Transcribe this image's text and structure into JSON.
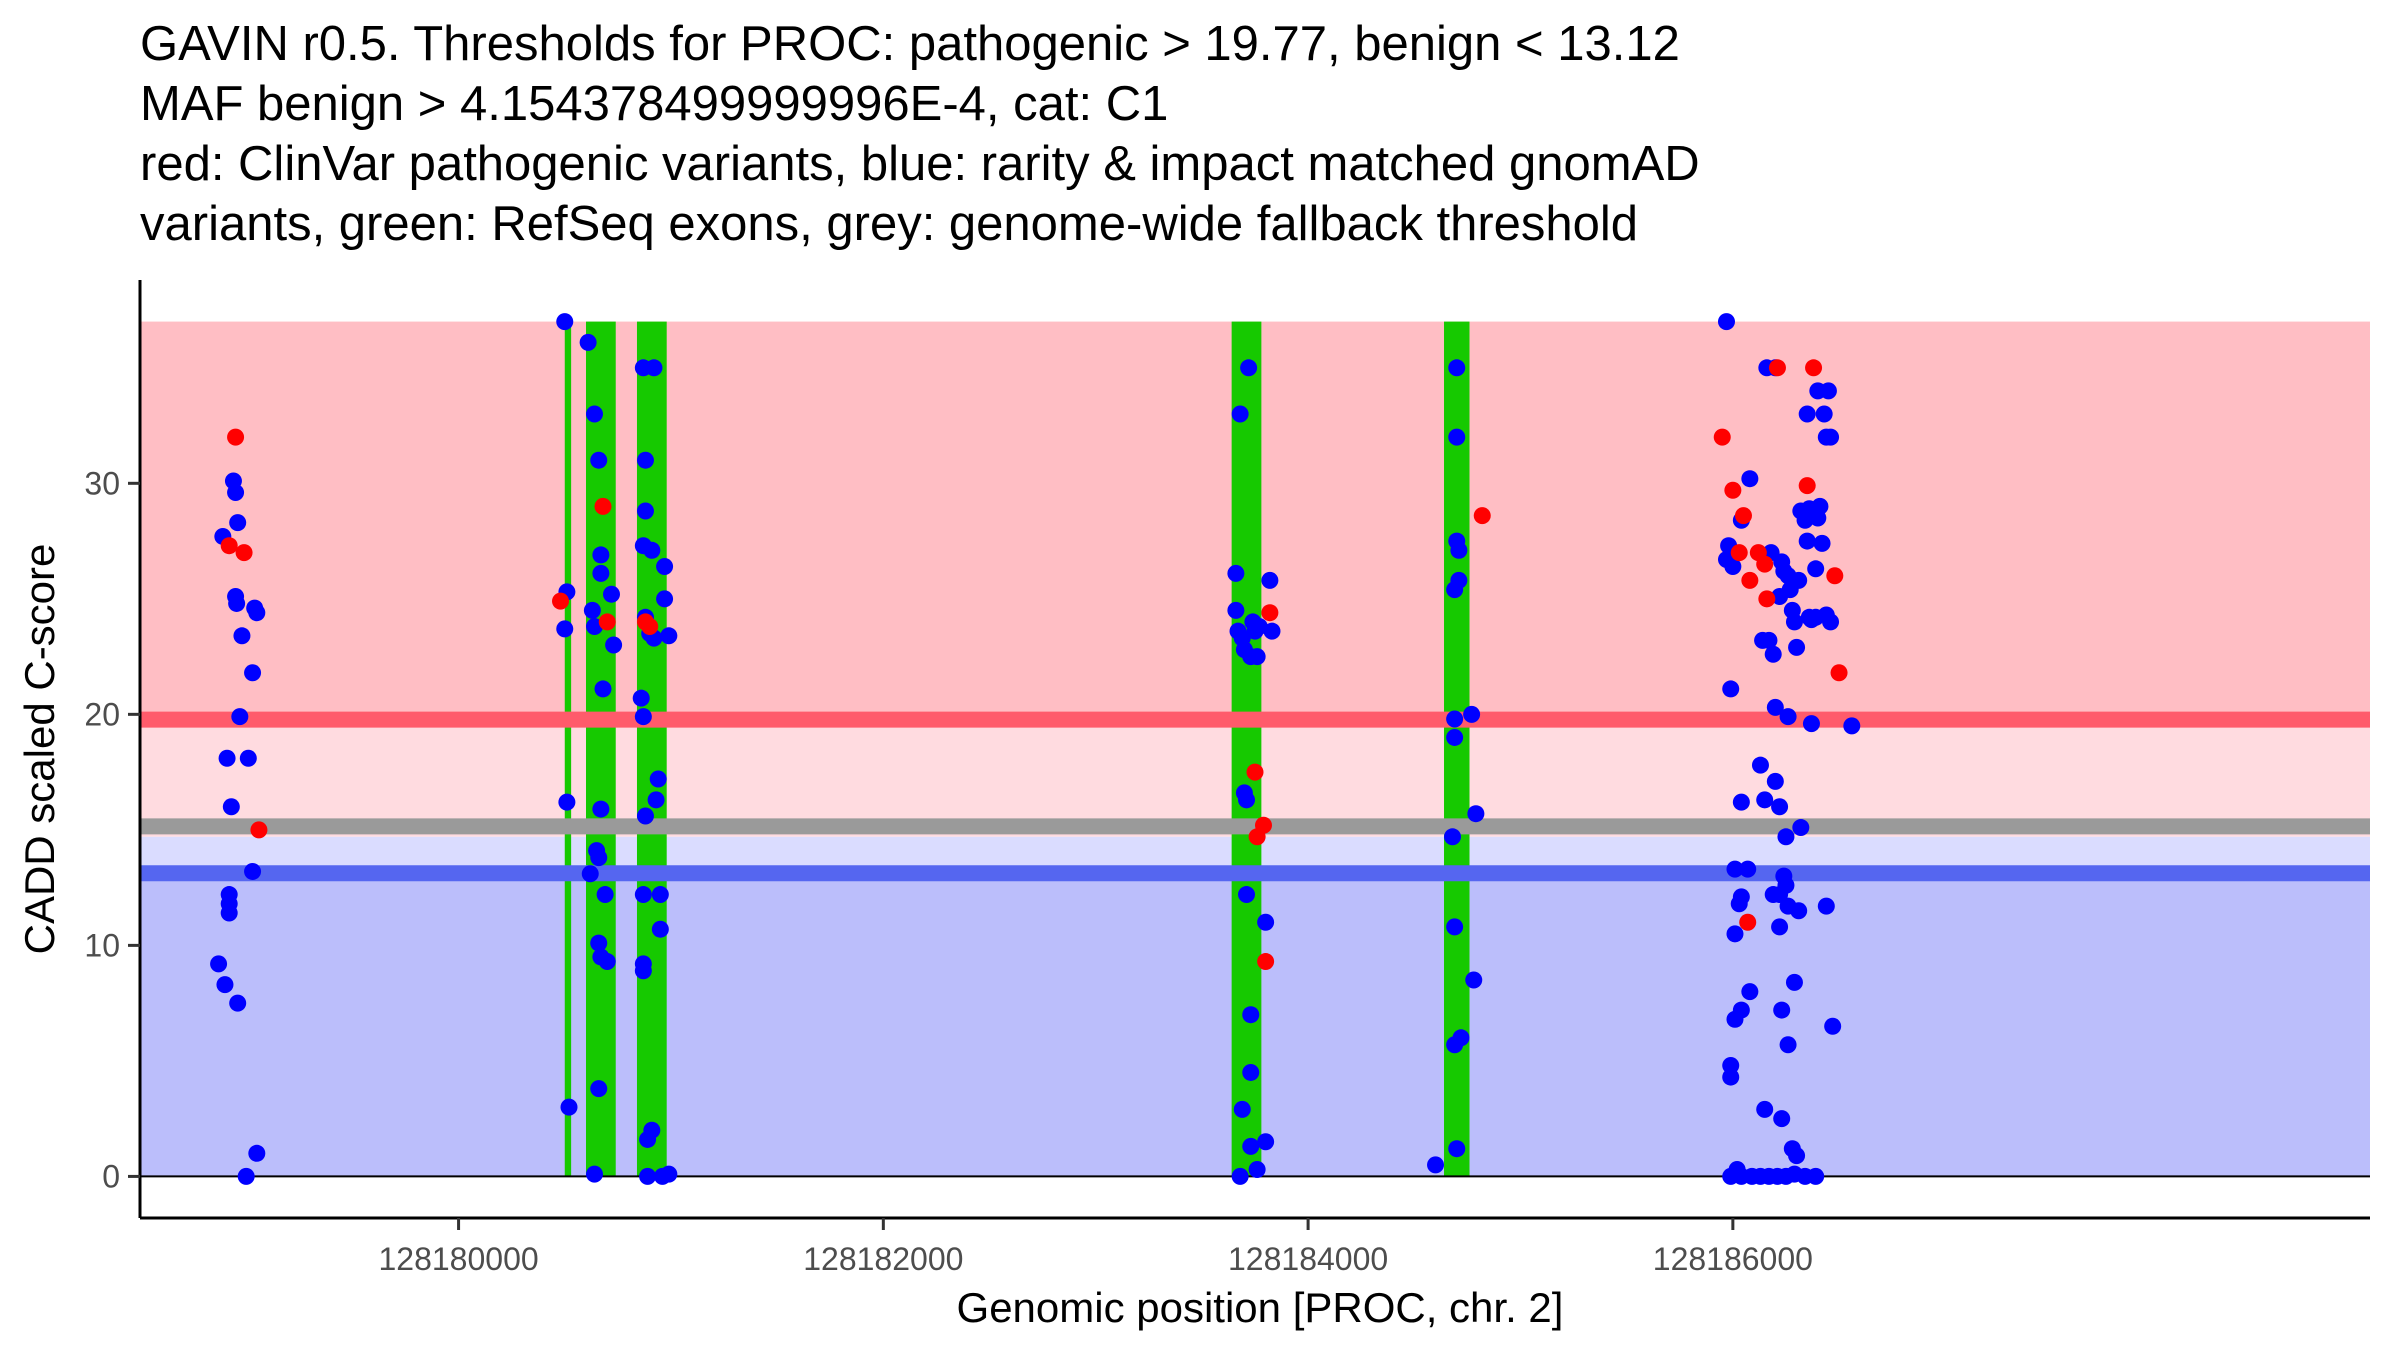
{
  "chart_data": {
    "type": "scatter",
    "title_lines": [
      "GAVIN r0.5. Thresholds for PROC: pathogenic > 19.77, benign < 13.12",
      "MAF benign > 4.154378499999996E-4, cat: C1",
      "red: ClinVar pathogenic variants, blue: rarity & impact matched gnomAD",
      "variants, green: RefSeq exons, grey: genome-wide fallback threshold"
    ],
    "xlabel": "Genomic position [PROC, chr. 2]",
    "ylabel": "CADD scaled C-score",
    "xlim": [
      128178500,
      128189000
    ],
    "ylim": [
      -1.8,
      38.8
    ],
    "x_ticks": [
      128180000,
      128182000,
      128184000,
      128186000
    ],
    "x_tick_labels": [
      "128180000",
      "128182000",
      "128184000",
      "128186000"
    ],
    "y_ticks": [
      0,
      10,
      20,
      30
    ],
    "y_tick_labels": [
      "0",
      "10",
      "20",
      "30"
    ],
    "zones": [
      {
        "name": "pathogenic",
        "from": 19.77,
        "to": 37,
        "color": "#ffbec4"
      },
      {
        "name": "intermediate",
        "from": 14.7,
        "to": 19.77,
        "color": "#ffdbe0"
      },
      {
        "name": "intermediate-benign",
        "from": 13.12,
        "to": 14.7,
        "color": "#dadcff"
      },
      {
        "name": "benign",
        "from": 0,
        "to": 13.12,
        "color": "#bbbefb"
      }
    ],
    "threshold_lines": [
      {
        "name": "pathogenic-threshold",
        "value": 19.77,
        "color": "#ff5b6b"
      },
      {
        "name": "fallback-threshold",
        "value": 15.15,
        "color": "#9a9a9a"
      },
      {
        "name": "benign-threshold",
        "value": 13.12,
        "color": "#5566f0"
      }
    ],
    "exons": [
      {
        "start": 128180500,
        "end": 128180530
      },
      {
        "start": 128180600,
        "end": 128180740
      },
      {
        "start": 128180840,
        "end": 128180980
      },
      {
        "start": 128183640,
        "end": 128183780
      },
      {
        "start": 128184640,
        "end": 128184760
      }
    ],
    "colors": {
      "pathogenic": "#ff0000",
      "gnomad": "#0000ff",
      "exon": "#16c900",
      "axis": "#000000"
    },
    "series": [
      {
        "name": "ClinVar pathogenic",
        "color": "#ff0000",
        "points": [
          [
            128178950,
            32.0
          ],
          [
            128178920,
            27.3
          ],
          [
            128178990,
            27.0
          ],
          [
            128179060,
            15.0
          ],
          [
            128180480,
            24.9
          ],
          [
            128180680,
            29.0
          ],
          [
            128180700,
            24.0
          ],
          [
            128180880,
            24.0
          ],
          [
            128180900,
            23.8
          ],
          [
            128183750,
            17.5
          ],
          [
            128183760,
            14.7
          ],
          [
            128183790,
            15.2
          ],
          [
            128183800,
            9.3
          ],
          [
            128183820,
            24.4
          ],
          [
            128184820,
            28.6
          ],
          [
            128185950,
            32.0
          ],
          [
            128186000,
            29.7
          ],
          [
            128186030,
            27.0
          ],
          [
            128186050,
            28.6
          ],
          [
            128186080,
            25.8
          ],
          [
            128186120,
            27.0
          ],
          [
            128186150,
            26.5
          ],
          [
            128186160,
            25.0
          ],
          [
            128186210,
            35.0
          ],
          [
            128186070,
            11.0
          ],
          [
            128186380,
            35.0
          ],
          [
            128186350,
            29.9
          ],
          [
            128186480,
            26.0
          ],
          [
            128186500,
            21.8
          ]
        ]
      },
      {
        "name": "gnomAD matched",
        "color": "#0000ff",
        "points": [
          [
            128178870,
            9.2
          ],
          [
            128178890,
            27.7
          ],
          [
            128178900,
            8.3
          ],
          [
            128178910,
            18.1
          ],
          [
            128178920,
            12.2
          ],
          [
            128178920,
            11.8
          ],
          [
            128178920,
            11.4
          ],
          [
            128178930,
            16.0
          ],
          [
            128178940,
            30.1
          ],
          [
            128178950,
            29.6
          ],
          [
            128178960,
            28.3
          ],
          [
            128178950,
            25.1
          ],
          [
            128178955,
            24.8
          ],
          [
            128178960,
            7.5
          ],
          [
            128178970,
            19.9
          ],
          [
            128178980,
            23.4
          ],
          [
            128179010,
            18.1
          ],
          [
            128179030,
            21.8
          ],
          [
            128179040,
            24.6
          ],
          [
            128179050,
            24.4
          ],
          [
            128179030,
            13.2
          ],
          [
            128179000,
            0.0
          ],
          [
            128179050,
            1.0
          ],
          [
            128180500,
            37.0
          ],
          [
            128180510,
            25.3
          ],
          [
            128180500,
            23.7
          ],
          [
            128180510,
            16.2
          ],
          [
            128180520,
            3.0
          ],
          [
            128180610,
            36.1
          ],
          [
            128180620,
            13.1
          ],
          [
            128180630,
            24.5
          ],
          [
            128180640,
            33.0
          ],
          [
            128180640,
            23.8
          ],
          [
            128180650,
            14.1
          ],
          [
            128180660,
            31.0
          ],
          [
            128180660,
            13.8
          ],
          [
            128180660,
            10.1
          ],
          [
            128180670,
            26.9
          ],
          [
            128180670,
            26.1
          ],
          [
            128180670,
            15.9
          ],
          [
            128180670,
            9.5
          ],
          [
            128180680,
            21.1
          ],
          [
            128180690,
            12.2
          ],
          [
            128180700,
            9.3
          ],
          [
            128180720,
            25.2
          ],
          [
            128180730,
            23.0
          ],
          [
            128180660,
            3.8
          ],
          [
            128180640,
            0.1
          ],
          [
            128180870,
            35.0
          ],
          [
            128180920,
            35.0
          ],
          [
            128180880,
            31.0
          ],
          [
            128180880,
            28.8
          ],
          [
            128180870,
            27.3
          ],
          [
            128180880,
            24.2
          ],
          [
            128180900,
            23.5
          ],
          [
            128180910,
            27.1
          ],
          [
            128180920,
            23.3
          ],
          [
            128180930,
            16.3
          ],
          [
            128180940,
            17.2
          ],
          [
            128180950,
            12.2
          ],
          [
            128180950,
            10.7
          ],
          [
            128180970,
            26.4
          ],
          [
            128180970,
            25.0
          ],
          [
            128180990,
            23.4
          ],
          [
            128180860,
            20.7
          ],
          [
            128180870,
            19.9
          ],
          [
            128180880,
            15.6
          ],
          [
            128180870,
            12.2
          ],
          [
            128180870,
            9.2
          ],
          [
            128180870,
            8.9
          ],
          [
            128180890,
            1.6
          ],
          [
            128180910,
            2.0
          ],
          [
            128180890,
            0.0
          ],
          [
            128180960,
            0.0
          ],
          [
            128180990,
            0.1
          ],
          [
            128183660,
            26.1
          ],
          [
            128183660,
            24.5
          ],
          [
            128183670,
            23.6
          ],
          [
            128183680,
            33.0
          ],
          [
            128183690,
            23.3
          ],
          [
            128183700,
            22.8
          ],
          [
            128183700,
            16.6
          ],
          [
            128183710,
            16.3
          ],
          [
            128183720,
            35.0
          ],
          [
            128183710,
            12.2
          ],
          [
            128183730,
            22.5
          ],
          [
            128183740,
            24.0
          ],
          [
            128183750,
            23.6
          ],
          [
            128183760,
            22.5
          ],
          [
            128183770,
            23.8
          ],
          [
            128183820,
            25.8
          ],
          [
            128183830,
            23.6
          ],
          [
            128183800,
            11.0
          ],
          [
            128183730,
            7.0
          ],
          [
            128183730,
            4.5
          ],
          [
            128183690,
            2.9
          ],
          [
            128183730,
            1.3
          ],
          [
            128183800,
            1.5
          ],
          [
            128183760,
            0.3
          ],
          [
            128183680,
            0.0
          ],
          [
            128184700,
            35.0
          ],
          [
            128184700,
            32.0
          ],
          [
            128184700,
            27.5
          ],
          [
            128184710,
            27.1
          ],
          [
            128184710,
            25.8
          ],
          [
            128184690,
            25.4
          ],
          [
            128184690,
            19.8
          ],
          [
            128184690,
            19.0
          ],
          [
            128184770,
            20.0
          ],
          [
            128184790,
            15.7
          ],
          [
            128184680,
            14.7
          ],
          [
            128184690,
            10.8
          ],
          [
            128184780,
            8.5
          ],
          [
            128184690,
            5.7
          ],
          [
            128184720,
            6.0
          ],
          [
            128184600,
            0.5
          ],
          [
            128184700,
            1.2
          ],
          [
            128185970,
            37.0
          ],
          [
            128186080,
            30.2
          ],
          [
            128186040,
            28.4
          ],
          [
            128186000,
            26.4
          ],
          [
            128185990,
            21.1
          ],
          [
            128185980,
            27.3
          ],
          [
            128185970,
            26.7
          ],
          [
            128186200,
            35.0
          ],
          [
            128186160,
            35.0
          ],
          [
            128186220,
            25.1
          ],
          [
            128186230,
            26.6
          ],
          [
            128186180,
            27.0
          ],
          [
            128186240,
            26.2
          ],
          [
            128186260,
            26.0
          ],
          [
            128186140,
            23.2
          ],
          [
            128186170,
            23.2
          ],
          [
            128186190,
            22.6
          ],
          [
            128186280,
            24.5
          ],
          [
            128186290,
            24.0
          ],
          [
            128186300,
            22.9
          ],
          [
            128186270,
            25.4
          ],
          [
            128186310,
            25.8
          ],
          [
            128186320,
            28.8
          ],
          [
            128186340,
            28.4
          ],
          [
            128186350,
            27.5
          ],
          [
            128186360,
            28.9
          ],
          [
            128186360,
            24.2
          ],
          [
            128186370,
            24.1
          ],
          [
            128186390,
            24.2
          ],
          [
            128186390,
            26.3
          ],
          [
            128186400,
            28.5
          ],
          [
            128186410,
            29.0
          ],
          [
            128186420,
            27.4
          ],
          [
            128186430,
            33.0
          ],
          [
            128186440,
            32.0
          ],
          [
            128186460,
            32.0
          ],
          [
            128186450,
            34.0
          ],
          [
            128186400,
            34.0
          ],
          [
            128186350,
            33.0
          ],
          [
            128186440,
            24.3
          ],
          [
            128186460,
            24.0
          ],
          [
            128186370,
            19.6
          ],
          [
            128186560,
            19.5
          ],
          [
            128186200,
            20.3
          ],
          [
            128186260,
            19.9
          ],
          [
            128186130,
            17.8
          ],
          [
            128186150,
            16.3
          ],
          [
            128186200,
            17.1
          ],
          [
            128186040,
            16.2
          ],
          [
            128186220,
            16.0
          ],
          [
            128186070,
            13.3
          ],
          [
            128186010,
            13.3
          ],
          [
            128186040,
            12.1
          ],
          [
            128186030,
            11.8
          ],
          [
            128186010,
            10.5
          ],
          [
            128186190,
            12.2
          ],
          [
            128186220,
            12.2
          ],
          [
            128186250,
            12.6
          ],
          [
            128186260,
            11.7
          ],
          [
            128186240,
            13.0
          ],
          [
            128186220,
            10.8
          ],
          [
            128186310,
            11.5
          ],
          [
            128186250,
            14.7
          ],
          [
            128186320,
            15.1
          ],
          [
            128186440,
            11.7
          ],
          [
            128186080,
            8.0
          ],
          [
            128186040,
            7.2
          ],
          [
            128186010,
            6.8
          ],
          [
            128185990,
            4.8
          ],
          [
            128185990,
            4.3
          ],
          [
            128186230,
            7.2
          ],
          [
            128186290,
            8.4
          ],
          [
            128186260,
            5.7
          ],
          [
            128186470,
            6.5
          ],
          [
            128186150,
            2.9
          ],
          [
            128186230,
            2.5
          ],
          [
            128186280,
            1.2
          ],
          [
            128186300,
            0.9
          ],
          [
            128186020,
            0.3
          ],
          [
            128185990,
            0.0
          ],
          [
            128186040,
            0.0
          ],
          [
            128186090,
            0.0
          ],
          [
            128186130,
            0.0
          ],
          [
            128186170,
            0.0
          ],
          [
            128186210,
            0.0
          ],
          [
            128186250,
            0.0
          ],
          [
            128186290,
            0.1
          ],
          [
            128186340,
            0.0
          ],
          [
            128186390,
            0.0
          ]
        ]
      }
    ]
  }
}
